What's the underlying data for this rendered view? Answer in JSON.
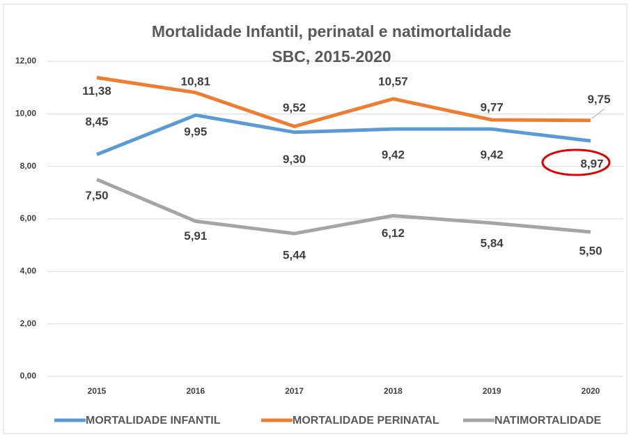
{
  "chart_data": {
    "type": "line",
    "title": "Mortalidade  Infantil, perinatal e natimortalidade",
    "subtitle": "SBC, 2015-2020",
    "categories": [
      "2015",
      "2016",
      "2017",
      "2018",
      "2019",
      "2020"
    ],
    "series": [
      {
        "name": "MORTALIDADE INFANTIL",
        "color": "#5b9bd5",
        "values": [
          8.45,
          9.95,
          9.3,
          9.42,
          9.42,
          8.97
        ],
        "value_labels": [
          "8,45",
          "9,95",
          "9,30",
          "9,42",
          "9,42",
          "8,97"
        ]
      },
      {
        "name": "MORTALIDADE PERINATAL",
        "color": "#ed7d31",
        "values": [
          11.38,
          10.81,
          9.52,
          10.57,
          9.77,
          9.75
        ],
        "value_labels": [
          "11,38",
          "10,81",
          "9,52",
          "10,57",
          "9,77",
          "9,75"
        ]
      },
      {
        "name": "NATIMORTALIDADE",
        "color": "#a5a5a5",
        "values": [
          7.5,
          5.91,
          5.44,
          6.12,
          5.84,
          5.5
        ],
        "value_labels": [
          "7,50",
          "5,91",
          "5,44",
          "6,12",
          "5,84",
          "5,50"
        ]
      }
    ],
    "ylim": [
      0,
      12
    ],
    "yticks": [
      {
        "value": 0,
        "label": "0,00"
      },
      {
        "value": 2,
        "label": "2,00"
      },
      {
        "value": 4,
        "label": "4,00"
      },
      {
        "value": 6,
        "label": "6,00"
      },
      {
        "value": 8,
        "label": "8,00"
      },
      {
        "value": 10,
        "label": "10,00"
      },
      {
        "value": 12,
        "label": "12,00"
      }
    ],
    "grid": true,
    "legend": "bottom"
  }
}
